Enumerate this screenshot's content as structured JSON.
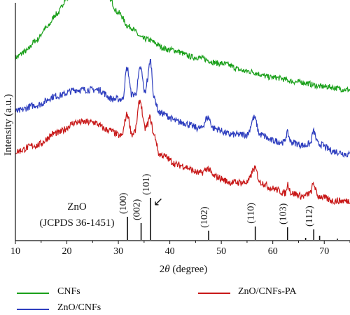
{
  "chart_data": {
    "type": "line",
    "xlabel_prefix": "2",
    "xlabel_theta": "θ",
    "xlabel_suffix": " (degree)",
    "ylabel": "Intensity (a.u.)",
    "xlim": [
      10,
      75
    ],
    "xticks": [
      10,
      20,
      30,
      40,
      50,
      60,
      70
    ],
    "series": [
      {
        "name": "CNFs",
        "color": "#1aa01a",
        "points": [
          [
            10,
            0.91
          ],
          [
            12,
            0.95
          ],
          [
            14,
            1.02
          ],
          [
            16,
            1.1
          ],
          [
            18,
            1.19
          ],
          [
            20,
            1.29
          ],
          [
            22,
            1.38
          ],
          [
            23,
            1.42
          ],
          [
            24,
            1.44
          ],
          [
            25,
            1.43
          ],
          [
            26,
            1.4
          ],
          [
            28,
            1.3
          ],
          [
            30,
            1.2
          ],
          [
            32,
            1.11
          ],
          [
            35,
            1.03
          ],
          [
            40,
            0.96
          ],
          [
            45,
            0.91
          ],
          [
            50,
            0.87
          ],
          [
            55,
            0.82
          ],
          [
            60,
            0.78
          ],
          [
            65,
            0.75
          ],
          [
            70,
            0.72
          ],
          [
            75,
            0.7
          ]
        ],
        "noise": 0.018
      },
      {
        "name": "ZnO/CNFs",
        "color": "#2f3fbf",
        "points": [
          [
            10,
            0.56
          ],
          [
            14,
            0.6
          ],
          [
            18,
            0.66
          ],
          [
            22,
            0.7
          ],
          [
            26,
            0.7
          ],
          [
            29,
            0.64
          ],
          [
            30.8,
            0.64
          ],
          [
            31.7,
            0.84
          ],
          [
            32.6,
            0.67
          ],
          [
            33.3,
            0.67
          ],
          [
            34.3,
            0.84
          ],
          [
            35.2,
            0.68
          ],
          [
            35.6,
            0.76
          ],
          [
            36.2,
            0.89
          ],
          [
            37.0,
            0.64
          ],
          [
            38,
            0.55
          ],
          [
            42,
            0.49
          ],
          [
            46,
            0.45
          ],
          [
            47.4,
            0.52
          ],
          [
            48.5,
            0.45
          ],
          [
            52,
            0.41
          ],
          [
            55,
            0.41
          ],
          [
            56.4,
            0.52
          ],
          [
            57.5,
            0.41
          ],
          [
            60,
            0.37
          ],
          [
            62.2,
            0.36
          ],
          [
            62.8,
            0.42
          ],
          [
            63.6,
            0.36
          ],
          [
            66,
            0.34
          ],
          [
            67.3,
            0.35
          ],
          [
            67.9,
            0.43
          ],
          [
            68.8,
            0.35
          ],
          [
            72,
            0.3
          ],
          [
            75,
            0.28
          ]
        ],
        "noise": 0.022
      },
      {
        "name": "ZnO/CNFs-PA",
        "color": "#c81818",
        "points": [
          [
            10,
            0.3
          ],
          [
            14,
            0.34
          ],
          [
            18,
            0.42
          ],
          [
            22,
            0.49
          ],
          [
            25,
            0.49
          ],
          [
            28,
            0.44
          ],
          [
            30.6,
            0.4
          ],
          [
            31.7,
            0.54
          ],
          [
            32.7,
            0.41
          ],
          [
            33.2,
            0.43
          ],
          [
            34.2,
            0.63
          ],
          [
            35.2,
            0.45
          ],
          [
            35.6,
            0.47
          ],
          [
            36.1,
            0.52
          ],
          [
            37.0,
            0.4
          ],
          [
            38,
            0.28
          ],
          [
            42,
            0.21
          ],
          [
            46,
            0.16
          ],
          [
            47.4,
            0.19
          ],
          [
            48.5,
            0.14
          ],
          [
            52,
            0.1
          ],
          [
            55,
            0.1
          ],
          [
            56.5,
            0.19
          ],
          [
            57.6,
            0.1
          ],
          [
            60,
            0.06
          ],
          [
            62.5,
            0.03
          ],
          [
            62.9,
            0.09
          ],
          [
            63.6,
            0.03
          ],
          [
            66,
            0.01
          ],
          [
            67.3,
            0.03
          ],
          [
            67.9,
            0.09
          ],
          [
            68.8,
            0.01
          ],
          [
            72,
            -0.02
          ],
          [
            75,
            -0.02
          ]
        ],
        "noise": 0.022
      }
    ],
    "reference": {
      "label_line1": "ZnO",
      "label_line2": "(JCPDS 36-1451)",
      "arrow": "↙",
      "lines": [
        {
          "x": 31.77,
          "h": 0.55,
          "label": "(100)"
        },
        {
          "x": 34.42,
          "h": 0.4,
          "label": "(002)"
        },
        {
          "x": 36.25,
          "h": 1.0,
          "label": "(101)"
        },
        {
          "x": 47.54,
          "h": 0.22,
          "label": "(102)"
        },
        {
          "x": 56.6,
          "h": 0.32,
          "label": "(110)"
        },
        {
          "x": 62.86,
          "h": 0.3,
          "label": "(103)"
        },
        {
          "x": 66.38,
          "h": 0.05,
          "label": ""
        },
        {
          "x": 67.96,
          "h": 0.25,
          "label": "(112)"
        },
        {
          "x": 69.1,
          "h": 0.1,
          "label": ""
        },
        {
          "x": 72.56,
          "h": 0.03,
          "label": ""
        }
      ]
    },
    "legend": [
      {
        "label": "CNFs",
        "color": "#1aa01a"
      },
      {
        "label": "ZnO/CNFs",
        "color": "#2f3fbf"
      },
      {
        "label": "ZnO/CNFs-PA",
        "color": "#c81818"
      }
    ]
  }
}
